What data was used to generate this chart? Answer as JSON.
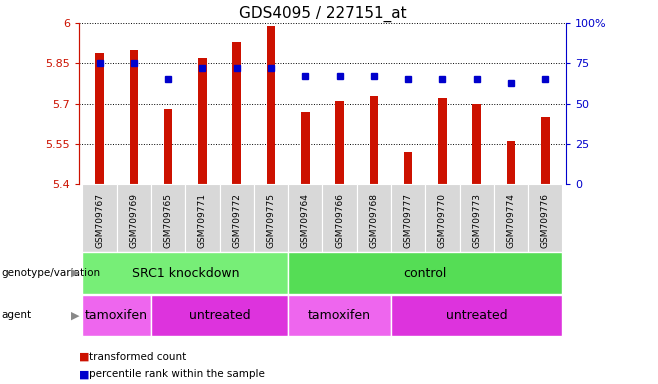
{
  "title": "GDS4095 / 227151_at",
  "samples": [
    "GSM709767",
    "GSM709769",
    "GSM709765",
    "GSM709771",
    "GSM709772",
    "GSM709775",
    "GSM709764",
    "GSM709766",
    "GSM709768",
    "GSM709777",
    "GSM709770",
    "GSM709773",
    "GSM709774",
    "GSM709776"
  ],
  "bar_values": [
    5.89,
    5.9,
    5.68,
    5.87,
    5.93,
    5.99,
    5.67,
    5.71,
    5.73,
    5.52,
    5.72,
    5.7,
    5.56,
    5.65
  ],
  "percentile_values": [
    75,
    75,
    65,
    72,
    72,
    72,
    67,
    67,
    67,
    65,
    65,
    65,
    63,
    65
  ],
  "ymin": 5.4,
  "ymax": 6.0,
  "yticks": [
    5.4,
    5.55,
    5.7,
    5.85,
    6.0
  ],
  "ytick_labels": [
    "5.4",
    "5.55",
    "5.7",
    "5.85",
    "6"
  ],
  "right_yticks": [
    0,
    25,
    50,
    75,
    100
  ],
  "right_ytick_labels": [
    "0",
    "25",
    "50",
    "75",
    "100%"
  ],
  "bar_color": "#cc1100",
  "dot_color": "#0000cc",
  "genotype_groups": [
    {
      "label": "SRC1 knockdown",
      "start": 0,
      "end": 6,
      "color": "#77ee77"
    },
    {
      "label": "control",
      "start": 6,
      "end": 14,
      "color": "#55dd55"
    }
  ],
  "agent_groups": [
    {
      "label": "tamoxifen",
      "start": 0,
      "end": 2,
      "color": "#ee66ee"
    },
    {
      "label": "untreated",
      "start": 2,
      "end": 6,
      "color": "#dd33dd"
    },
    {
      "label": "tamoxifen",
      "start": 6,
      "end": 9,
      "color": "#ee66ee"
    },
    {
      "label": "untreated",
      "start": 9,
      "end": 14,
      "color": "#dd33dd"
    }
  ],
  "legend_red_label": "transformed count",
  "legend_blue_label": "percentile rank within the sample",
  "geno_label": "genotype/variation",
  "agent_label": "agent"
}
